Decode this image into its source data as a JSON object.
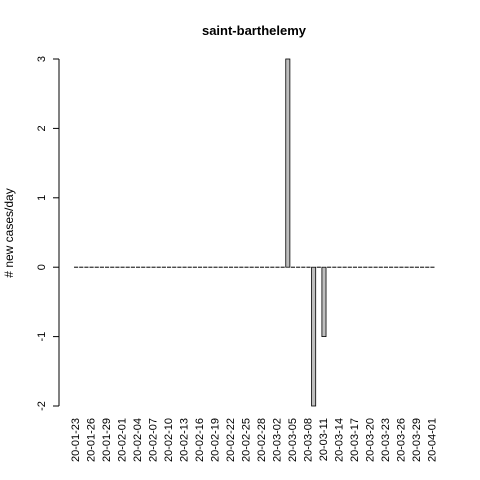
{
  "chart_data": {
    "type": "bar",
    "title": "saint-barthelemy",
    "xlabel": "",
    "ylabel": "# new cases/day",
    "ylim": [
      -2,
      3
    ],
    "yticks": [
      -2,
      -1,
      0,
      1,
      2,
      3
    ],
    "grid": false,
    "bar_color": "#bebebe",
    "bar_border_color": "#000000",
    "categories": [
      "20-01-23",
      "20-01-24",
      "20-01-25",
      "20-01-26",
      "20-01-27",
      "20-01-28",
      "20-01-29",
      "20-01-30",
      "20-01-31",
      "20-02-01",
      "20-02-02",
      "20-02-03",
      "20-02-04",
      "20-02-05",
      "20-02-06",
      "20-02-07",
      "20-02-08",
      "20-02-09",
      "20-02-10",
      "20-02-11",
      "20-02-12",
      "20-02-13",
      "20-02-14",
      "20-02-15",
      "20-02-16",
      "20-02-17",
      "20-02-18",
      "20-02-19",
      "20-02-20",
      "20-02-21",
      "20-02-22",
      "20-02-23",
      "20-02-24",
      "20-02-25",
      "20-02-26",
      "20-02-27",
      "20-02-28",
      "20-02-29",
      "20-03-01",
      "20-03-02",
      "20-03-03",
      "20-03-04",
      "20-03-05",
      "20-03-06",
      "20-03-07",
      "20-03-08",
      "20-03-09",
      "20-03-10",
      "20-03-11",
      "20-03-12",
      "20-03-13",
      "20-03-14",
      "20-03-15",
      "20-03-16",
      "20-03-17",
      "20-03-18",
      "20-03-19",
      "20-03-20",
      "20-03-21",
      "20-03-22",
      "20-03-23",
      "20-03-24",
      "20-03-25",
      "20-03-26",
      "20-03-27",
      "20-03-28",
      "20-03-29",
      "20-03-30",
      "20-03-31",
      "20-04-01"
    ],
    "labeled_categories": [
      "20-01-23",
      "20-01-26",
      "20-01-29",
      "20-02-01",
      "20-02-04",
      "20-02-07",
      "20-02-10",
      "20-02-13",
      "20-02-16",
      "20-02-19",
      "20-02-22",
      "20-02-25",
      "20-02-28",
      "20-03-02",
      "20-03-05",
      "20-03-08",
      "20-03-11",
      "20-03-14",
      "20-03-17",
      "20-03-20",
      "20-03-23",
      "20-03-26",
      "20-03-29",
      "20-04-01"
    ],
    "values": [
      0,
      0,
      0,
      0,
      0,
      0,
      0,
      0,
      0,
      0,
      0,
      0,
      0,
      0,
      0,
      0,
      0,
      0,
      0,
      0,
      0,
      0,
      0,
      0,
      0,
      0,
      0,
      0,
      0,
      0,
      0,
      0,
      0,
      0,
      0,
      0,
      0,
      0,
      0,
      0,
      0,
      3,
      0,
      0,
      0,
      0,
      -2,
      0,
      -1,
      0,
      0,
      0,
      0,
      0,
      0,
      0,
      0,
      0,
      0,
      0,
      0,
      0,
      0,
      0,
      0,
      0,
      0,
      0,
      0,
      0
    ]
  }
}
